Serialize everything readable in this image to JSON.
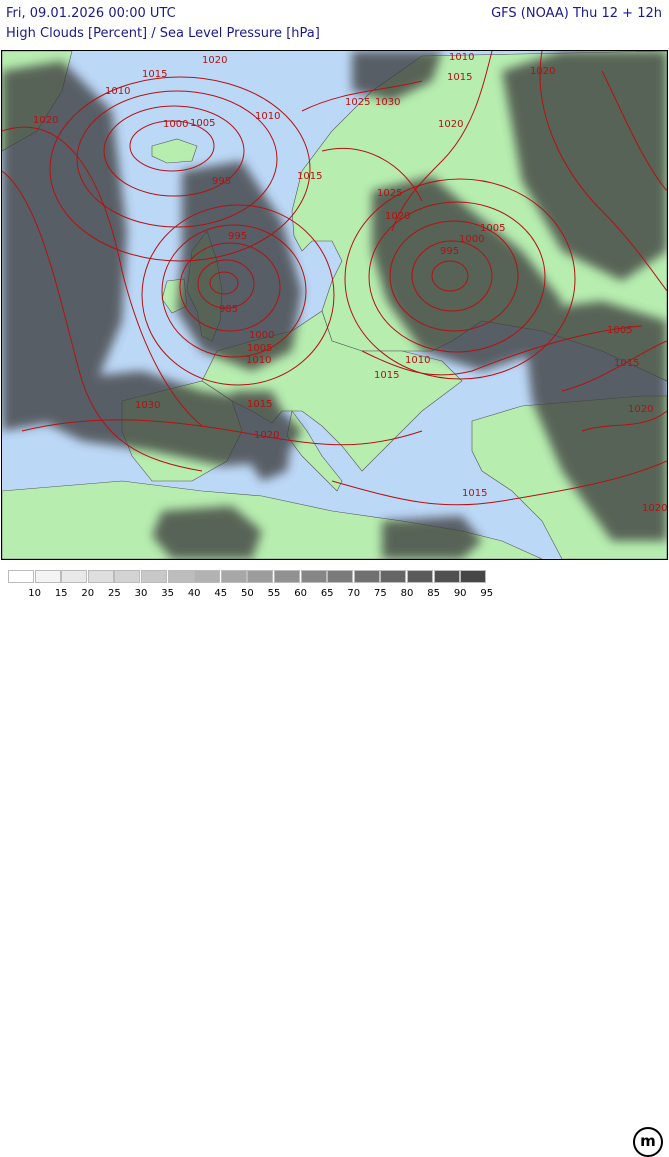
{
  "header": {
    "datetime": "Fri, 09.01.2026 00:00 UTC",
    "model": "GFS (NOAA) Thu 12 + 12h",
    "title": "High Clouds [Percent] / Sea Level Pressure [hPa]"
  },
  "colors": {
    "sea": "#bcd8f7",
    "land": "#b7eeb0",
    "isobar": "#b31212",
    "isobar_label": "#b31212",
    "border": "#333333"
  },
  "isobar_labels": [
    "1010",
    "1015",
    "1020",
    "1020",
    "1015",
    "1010",
    "1020",
    "1000",
    "1005",
    "1010",
    "1025",
    "1030",
    "1020",
    "1015",
    "995",
    "1025",
    "1020",
    "995",
    "1005",
    "1000",
    "995",
    "985",
    "1000",
    "1005",
    "1010",
    "1010",
    "1005",
    "1015",
    "1015",
    "1030",
    "1015",
    "1020",
    "1020",
    "1015",
    "1020"
  ],
  "legend": {
    "labels": [
      "10",
      "15",
      "20",
      "25",
      "30",
      "35",
      "40",
      "45",
      "50",
      "55",
      "60",
      "65",
      "70",
      "75",
      "80",
      "85",
      "90",
      "95"
    ],
    "colors": [
      "#ffffff",
      "#f4f4f4",
      "#e9e9e9",
      "#dedede",
      "#d3d3d3",
      "#c8c8c8",
      "#bdbdbd",
      "#b2b2b2",
      "#a7a7a7",
      "#9c9c9c",
      "#919191",
      "#868686",
      "#7b7b7b",
      "#707070",
      "#656565",
      "#5a5a5a",
      "#505050",
      "#464646"
    ]
  },
  "logo": {
    "text": "m"
  }
}
